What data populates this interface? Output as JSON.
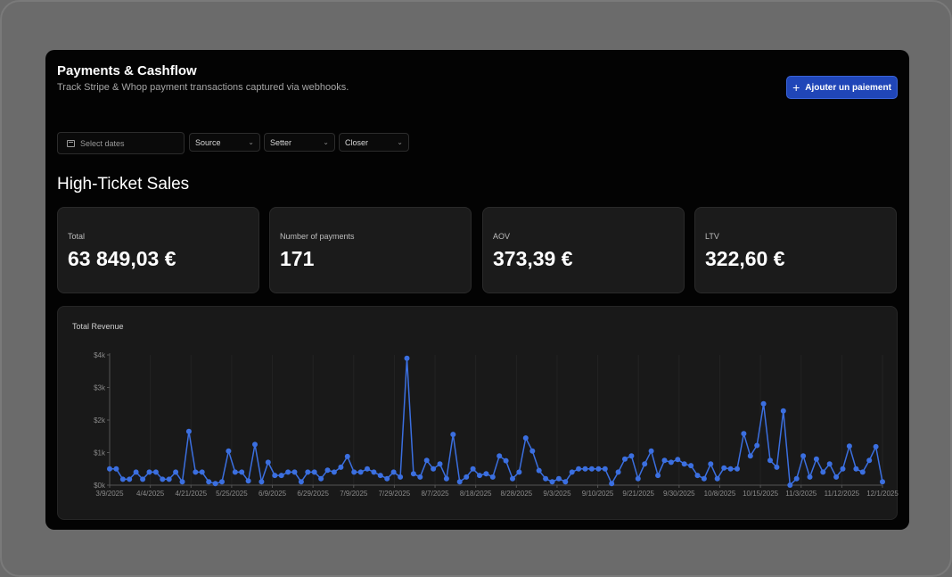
{
  "header": {
    "title": "Payments & Cashflow",
    "subtitle": "Track Stripe & Whop payment transactions captured via webhooks.",
    "add_button": "Ajouter un paiement"
  },
  "filters": {
    "date_placeholder": "Select dates",
    "source": "Source",
    "setter": "Setter",
    "closer": "Closer"
  },
  "section_title": "High-Ticket Sales",
  "kpis": [
    {
      "label": "Total",
      "value": "63 849,03 €"
    },
    {
      "label": "Number of payments",
      "value": "171"
    },
    {
      "label": "AOV",
      "value": "373,39 €"
    },
    {
      "label": "LTV",
      "value": "322,60 €"
    }
  ],
  "chart_title": "Total Revenue",
  "colors": {
    "accent": "#3b6fe0",
    "button": "#2046b8"
  },
  "chart_data": {
    "type": "line",
    "title": "Total Revenue",
    "ylim": [
      0,
      4000
    ],
    "y_ticks": [
      "$0k",
      "$1k",
      "$2k",
      "$3k",
      "$4k"
    ],
    "x_ticks": [
      "3/9/2025",
      "4/4/2025",
      "4/21/2025",
      "5/25/2025",
      "6/9/2025",
      "6/29/2025",
      "7/9/2025",
      "7/29/2025",
      "8/7/2025",
      "8/18/2025",
      "8/28/2025",
      "9/3/2025",
      "9/10/2025",
      "9/21/2025",
      "9/30/2025",
      "10/8/2025",
      "10/15/2025",
      "11/3/2025",
      "11/12/2025",
      "12/1/2025"
    ],
    "grid": true,
    "values": [
      500,
      500,
      180,
      180,
      400,
      180,
      400,
      400,
      180,
      180,
      400,
      100,
      1650,
      400,
      400,
      100,
      50,
      100,
      1050,
      400,
      400,
      130,
      1250,
      100,
      700,
      300,
      300,
      400,
      400,
      100,
      400,
      400,
      200,
      460,
      400,
      550,
      880,
      400,
      400,
      500,
      400,
      300,
      200,
      400,
      250,
      3900,
      350,
      250,
      760,
      500,
      650,
      200,
      1560,
      100,
      250,
      500,
      300,
      350,
      250,
      900,
      750,
      200,
      400,
      1450,
      1050,
      450,
      200,
      100,
      200,
      100,
      400,
      500,
      500,
      500,
      500,
      500,
      50,
      400,
      800,
      900,
      200,
      650,
      1050,
      300,
      760,
      700,
      790,
      650,
      600,
      300,
      200,
      650,
      200,
      530,
      500,
      500,
      1580,
      900,
      1220,
      2500,
      760,
      550,
      2280,
      0,
      200,
      900,
      250,
      800,
      400,
      650,
      250,
      500,
      1200,
      500,
      400,
      760,
      1180,
      100
    ]
  }
}
